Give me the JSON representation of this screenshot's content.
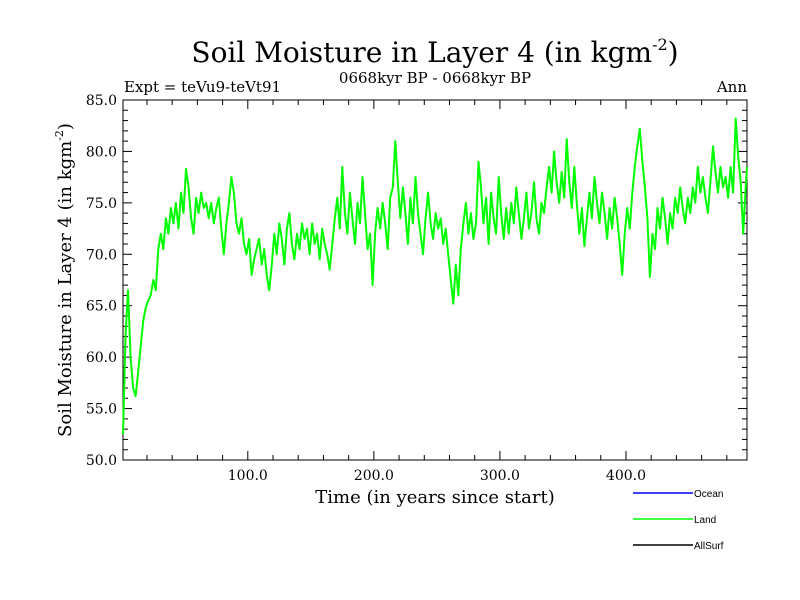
{
  "chart_data": {
    "type": "line",
    "title": "Soil Moisture in Layer 4 (in kgm",
    "title_sup": "-2",
    "title_close": ")",
    "subtitle": "0668kyr BP - 0668kyr BP",
    "left_label": "Expt = teVu9-teVt91",
    "right_label": "Ann",
    "xlabel": "Time (in years since start)",
    "ylabel": "Soil Moisture in Layer 4 (in kgm",
    "ylabel_sup": "-2",
    "ylabel_close": ")",
    "xlim": [
      1,
      496
    ],
    "ylim": [
      50,
      85
    ],
    "x_ticks": [
      100,
      200,
      300,
      400
    ],
    "x_tick_labels": [
      "100.0",
      "200.0",
      "300.0",
      "400.0"
    ],
    "y_ticks": [
      50,
      55,
      60,
      65,
      70,
      75,
      80,
      85
    ],
    "y_tick_labels": [
      "50.0",
      "55.0",
      "60.0",
      "65.0",
      "70.0",
      "75.0",
      "80.0",
      "85.0"
    ],
    "legend": [
      {
        "name": "Ocean",
        "color": "#0000ff"
      },
      {
        "name": "Land",
        "color": "#00ff00"
      },
      {
        "name": "AllSurf",
        "color": "#000000"
      }
    ],
    "series": [
      {
        "name": "Land",
        "color": "#00ff00",
        "points": [
          [
            1,
            52.5
          ],
          [
            3,
            62.0
          ],
          [
            5,
            66.5
          ],
          [
            7,
            60.0
          ],
          [
            9,
            57.0
          ],
          [
            11,
            56.2
          ],
          [
            13,
            58.5
          ],
          [
            15,
            61.0
          ],
          [
            17,
            63.5
          ],
          [
            19,
            64.8
          ],
          [
            21,
            65.5
          ],
          [
            23,
            66.0
          ],
          [
            25,
            67.5
          ],
          [
            27,
            66.5
          ],
          [
            29,
            70.5
          ],
          [
            31,
            72.0
          ],
          [
            33,
            70.5
          ],
          [
            35,
            73.5
          ],
          [
            37,
            72.0
          ],
          [
            39,
            74.5
          ],
          [
            41,
            73.0
          ],
          [
            43,
            75.0
          ],
          [
            45,
            72.5
          ],
          [
            47,
            76.0
          ],
          [
            49,
            74.0
          ],
          [
            51,
            78.3
          ],
          [
            53,
            76.5
          ],
          [
            55,
            73.5
          ],
          [
            57,
            72.0
          ],
          [
            59,
            75.5
          ],
          [
            61,
            74.0
          ],
          [
            63,
            76.0
          ],
          [
            65,
            74.5
          ],
          [
            67,
            75.0
          ],
          [
            69,
            73.5
          ],
          [
            71,
            75.0
          ],
          [
            73,
            73.0
          ],
          [
            75,
            74.5
          ],
          [
            77,
            75.5
          ],
          [
            79,
            72.5
          ],
          [
            81,
            70.0
          ],
          [
            83,
            73.0
          ],
          [
            85,
            75.0
          ],
          [
            87,
            77.5
          ],
          [
            89,
            76.0
          ],
          [
            91,
            73.0
          ],
          [
            93,
            72.0
          ],
          [
            95,
            73.5
          ],
          [
            97,
            71.0
          ],
          [
            99,
            70.0
          ],
          [
            101,
            71.5
          ],
          [
            103,
            68.0
          ],
          [
            105,
            69.5
          ],
          [
            107,
            70.5
          ],
          [
            109,
            71.5
          ],
          [
            111,
            69.0
          ],
          [
            113,
            70.5
          ],
          [
            115,
            68.0
          ],
          [
            117,
            66.5
          ],
          [
            119,
            69.0
          ],
          [
            121,
            72.0
          ],
          [
            123,
            70.0
          ],
          [
            125,
            73.0
          ],
          [
            127,
            71.5
          ],
          [
            129,
            69.0
          ],
          [
            131,
            72.5
          ],
          [
            133,
            74.0
          ],
          [
            135,
            71.0
          ],
          [
            137,
            69.5
          ],
          [
            139,
            72.0
          ],
          [
            141,
            70.5
          ],
          [
            143,
            73.0
          ],
          [
            145,
            71.5
          ],
          [
            147,
            72.5
          ],
          [
            149,
            70.0
          ],
          [
            151,
            73.0
          ],
          [
            153,
            71.0
          ],
          [
            155,
            72.0
          ],
          [
            157,
            69.5
          ],
          [
            159,
            72.5
          ],
          [
            161,
            71.0
          ],
          [
            163,
            70.0
          ],
          [
            165,
            68.5
          ],
          [
            167,
            71.0
          ],
          [
            169,
            73.5
          ],
          [
            171,
            75.5
          ],
          [
            173,
            72.5
          ],
          [
            175,
            78.5
          ],
          [
            177,
            74.0
          ],
          [
            179,
            72.0
          ],
          [
            181,
            76.0
          ],
          [
            183,
            73.5
          ],
          [
            185,
            71.0
          ],
          [
            187,
            75.0
          ],
          [
            189,
            73.0
          ],
          [
            191,
            77.5
          ],
          [
            193,
            74.0
          ],
          [
            195,
            70.5
          ],
          [
            197,
            72.0
          ],
          [
            199,
            67.0
          ],
          [
            201,
            72.0
          ],
          [
            203,
            74.5
          ],
          [
            205,
            72.5
          ],
          [
            207,
            75.0
          ],
          [
            209,
            73.0
          ],
          [
            211,
            70.5
          ],
          [
            213,
            75.5
          ],
          [
            215,
            76.5
          ],
          [
            217,
            81.0
          ],
          [
            219,
            77.0
          ],
          [
            221,
            73.5
          ],
          [
            223,
            76.5
          ],
          [
            225,
            74.0
          ],
          [
            227,
            71.0
          ],
          [
            229,
            75.5
          ],
          [
            231,
            73.0
          ],
          [
            233,
            77.5
          ],
          [
            235,
            74.0
          ],
          [
            237,
            72.0
          ],
          [
            239,
            70.0
          ],
          [
            241,
            73.5
          ],
          [
            243,
            76.0
          ],
          [
            245,
            73.0
          ],
          [
            247,
            71.5
          ],
          [
            249,
            74.0
          ],
          [
            251,
            72.5
          ],
          [
            253,
            73.5
          ],
          [
            255,
            71.0
          ],
          [
            257,
            72.5
          ],
          [
            259,
            70.0
          ],
          [
            261,
            67.5
          ],
          [
            263,
            65.2
          ],
          [
            265,
            69.0
          ],
          [
            267,
            66.0
          ],
          [
            269,
            70.5
          ],
          [
            271,
            73.0
          ],
          [
            273,
            75.0
          ],
          [
            275,
            72.0
          ],
          [
            277,
            74.0
          ],
          [
            279,
            71.5
          ],
          [
            281,
            73.0
          ],
          [
            283,
            79.0
          ],
          [
            285,
            76.5
          ],
          [
            287,
            73.0
          ],
          [
            289,
            75.5
          ],
          [
            291,
            71.0
          ],
          [
            293,
            76.0
          ],
          [
            295,
            73.5
          ],
          [
            297,
            72.0
          ],
          [
            299,
            77.5
          ],
          [
            301,
            74.0
          ],
          [
            303,
            71.5
          ],
          [
            305,
            74.5
          ],
          [
            307,
            72.0
          ],
          [
            309,
            75.0
          ],
          [
            311,
            73.0
          ],
          [
            313,
            76.5
          ],
          [
            315,
            74.0
          ],
          [
            317,
            71.5
          ],
          [
            319,
            73.5
          ],
          [
            321,
            76.0
          ],
          [
            323,
            72.5
          ],
          [
            325,
            74.0
          ],
          [
            327,
            77.0
          ],
          [
            329,
            73.5
          ],
          [
            331,
            72.0
          ],
          [
            333,
            75.0
          ],
          [
            335,
            74.0
          ],
          [
            337,
            76.5
          ],
          [
            339,
            78.5
          ],
          [
            341,
            76.0
          ],
          [
            343,
            80.0
          ],
          [
            345,
            77.0
          ],
          [
            347,
            75.0
          ],
          [
            349,
            78.0
          ],
          [
            351,
            75.5
          ],
          [
            353,
            81.2
          ],
          [
            355,
            77.0
          ],
          [
            357,
            74.5
          ],
          [
            359,
            78.5
          ],
          [
            361,
            75.0
          ],
          [
            363,
            72.0
          ],
          [
            365,
            74.5
          ],
          [
            367,
            70.8
          ],
          [
            369,
            73.5
          ],
          [
            371,
            76.0
          ],
          [
            373,
            73.5
          ],
          [
            375,
            77.5
          ],
          [
            377,
            75.0
          ],
          [
            379,
            73.0
          ],
          [
            381,
            76.0
          ],
          [
            383,
            74.0
          ],
          [
            385,
            71.5
          ],
          [
            387,
            74.5
          ],
          [
            389,
            72.5
          ],
          [
            391,
            75.5
          ],
          [
            393,
            73.5
          ],
          [
            395,
            71.0
          ],
          [
            397,
            68.0
          ],
          [
            399,
            72.0
          ],
          [
            401,
            74.5
          ],
          [
            403,
            72.5
          ],
          [
            405,
            76.0
          ],
          [
            407,
            78.5
          ],
          [
            409,
            80.5
          ],
          [
            411,
            82.2
          ],
          [
            413,
            79.0
          ],
          [
            415,
            76.5
          ],
          [
            417,
            73.5
          ],
          [
            419,
            67.8
          ],
          [
            421,
            72.0
          ],
          [
            423,
            70.5
          ],
          [
            425,
            74.5
          ],
          [
            427,
            72.5
          ],
          [
            429,
            75.5
          ],
          [
            431,
            73.5
          ],
          [
            433,
            71.0
          ],
          [
            435,
            74.0
          ],
          [
            437,
            72.5
          ],
          [
            439,
            75.5
          ],
          [
            441,
            74.0
          ],
          [
            443,
            76.5
          ],
          [
            445,
            74.5
          ],
          [
            447,
            73.0
          ],
          [
            449,
            75.5
          ],
          [
            451,
            74.0
          ],
          [
            453,
            76.5
          ],
          [
            455,
            75.0
          ],
          [
            457,
            78.5
          ],
          [
            459,
            76.0
          ],
          [
            461,
            77.5
          ],
          [
            463,
            75.5
          ],
          [
            465,
            74.0
          ],
          [
            467,
            77.0
          ],
          [
            469,
            80.5
          ],
          [
            471,
            78.0
          ],
          [
            473,
            76.0
          ],
          [
            475,
            78.5
          ],
          [
            477,
            76.5
          ],
          [
            479,
            77.5
          ],
          [
            481,
            75.5
          ],
          [
            483,
            78.5
          ],
          [
            485,
            76.0
          ],
          [
            487,
            83.2
          ],
          [
            489,
            79.5
          ],
          [
            491,
            77.0
          ],
          [
            493,
            72.0
          ],
          [
            495,
            76.5
          ],
          [
            496,
            78.5
          ]
        ]
      }
    ]
  }
}
